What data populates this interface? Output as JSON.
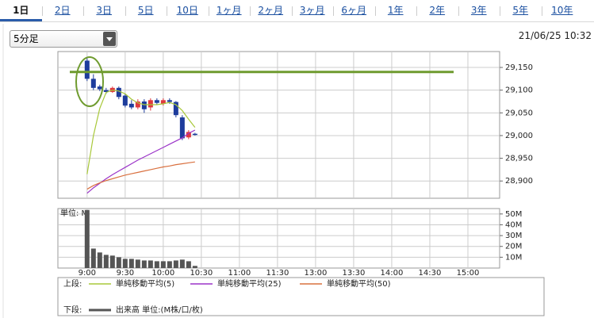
{
  "tabs": [
    "1日",
    "2日",
    "3日",
    "5日",
    "10日",
    "1ヶ月",
    "2ヶ月",
    "3ヶ月",
    "6ヶ月",
    "1年",
    "2年",
    "3年",
    "5年",
    "10年"
  ],
  "selected_tab": 0,
  "interval_select": "5分足",
  "timestamp": "21/06/25 10:32",
  "legend": {
    "upper_label": "上段:",
    "lower_label": "下段:"
  },
  "chart_data": [
    {
      "type": "candlestick",
      "up_color": "#e0393e",
      "down_color": "#1d3c9c",
      "open": [
        29165,
        29125,
        29108,
        29100,
        29096,
        29105,
        29088,
        29070,
        29062,
        29075,
        29062,
        29078,
        29070,
        29078,
        29074,
        29040,
        28996,
        29004
      ],
      "high": [
        29170,
        29135,
        29112,
        29105,
        29108,
        29108,
        29092,
        29078,
        29080,
        29080,
        29082,
        29082,
        29082,
        29082,
        29076,
        29045,
        29012,
        29006
      ],
      "low": [
        29120,
        29100,
        29098,
        29092,
        29094,
        29080,
        29062,
        29058,
        29058,
        29050,
        29055,
        29068,
        29066,
        29070,
        29040,
        28990,
        28992,
        29000
      ],
      "close": [
        29125,
        29105,
        29102,
        29096,
        29105,
        29085,
        29066,
        29062,
        29075,
        29058,
        29078,
        29072,
        29078,
        29074,
        29045,
        28994,
        29008,
        29002
      ],
      "series": [
        {
          "name": "単純移動平均(5)",
          "color": "#a8c83a",
          "values": [
            28915,
            29000,
            29060,
            29095,
            29100,
            29098,
            29092,
            29080,
            29072,
            29068,
            29068,
            29068,
            29070,
            29073,
            29068,
            29055,
            29036,
            29018
          ]
        },
        {
          "name": "単純移動平均(25)",
          "color": "#9b33c8",
          "values": [
            28873,
            28885,
            28895,
            28905,
            28914,
            28922,
            28930,
            28938,
            28946,
            28953,
            28960,
            28967,
            28974,
            28981,
            28988,
            28995,
            29005,
            29012
          ]
        },
        {
          "name": "単純移動平均(50)",
          "color": "#d9703f",
          "values": [
            28882,
            28890,
            28896,
            28901,
            28905,
            28909,
            28913,
            28916,
            28919,
            28922,
            28925,
            28928,
            28931,
            28933,
            28936,
            28938,
            28940,
            28942
          ]
        }
      ],
      "reference_line": {
        "value": 29140,
        "color": "#6f9b2f"
      },
      "xlim": [
        -4.6,
        65
      ],
      "ylim": [
        28862,
        29185
      ],
      "yticks": [
        {
          "value": 28900,
          "label": "28,900"
        },
        {
          "value": 28950,
          "label": "28,950"
        },
        {
          "value": 29000,
          "label": "29,000"
        },
        {
          "value": 29050,
          "label": "29,050"
        },
        {
          "value": 29100,
          "label": "29,100"
        },
        {
          "value": 29150,
          "label": "29,150"
        }
      ],
      "grid": true
    },
    {
      "type": "bar",
      "unit_label": "単位: M",
      "series": [
        {
          "name": "出来高 単位:(M株/口/枚)",
          "color": "#555555",
          "values": [
            53.7,
            18,
            14.4,
            12.2,
            11.5,
            10,
            8.5,
            8.5,
            7.8,
            7,
            7,
            6.3,
            6.3,
            6.3,
            7,
            7.8,
            6.3,
            2
          ]
        }
      ],
      "xlim": [
        -4.6,
        65
      ],
      "xticks": [
        {
          "value": 0,
          "label": "9:00"
        },
        {
          "value": 6,
          "label": "9:30"
        },
        {
          "value": 12,
          "label": "10:00"
        },
        {
          "value": 18,
          "label": "10:30"
        },
        {
          "value": 24,
          "label": "11:00"
        },
        {
          "value": 30,
          "label": "11:30"
        },
        {
          "value": 36,
          "label": "13:00"
        },
        {
          "value": 42,
          "label": "13:30"
        },
        {
          "value": 48,
          "label": "14:00"
        },
        {
          "value": 54,
          "label": "14:30"
        },
        {
          "value": 60,
          "label": "15:00"
        }
      ],
      "ylim": [
        0,
        55
      ],
      "yticks": [
        {
          "value": 10,
          "label": "10M"
        },
        {
          "value": 20,
          "label": "20M"
        },
        {
          "value": 30,
          "label": "30M"
        },
        {
          "value": 40,
          "label": "40M"
        },
        {
          "value": 50,
          "label": "50M"
        }
      ],
      "grid": true
    }
  ]
}
